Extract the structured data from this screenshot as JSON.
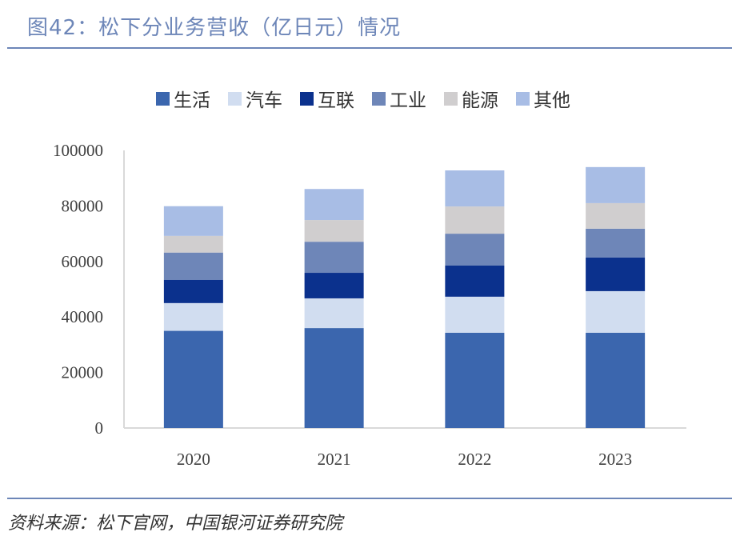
{
  "header": {
    "title": "图42：松下分业务营收（亿日元）情况"
  },
  "footer": {
    "source": "资料来源：松下官网，中国银河证券研究院"
  },
  "chart_data": {
    "type": "bar",
    "stacked": true,
    "title": "图42：松下分业务营收（亿日元）情况",
    "xlabel": "",
    "ylabel": "",
    "categories": [
      "2020",
      "2021",
      "2022",
      "2023"
    ],
    "ylim": [
      0,
      100000
    ],
    "yticks": [
      "0",
      "20000",
      "40000",
      "60000",
      "80000",
      "100000"
    ],
    "legend_position": "top",
    "grid": false,
    "series": [
      {
        "name": "生活",
        "color": "#3b66ae",
        "values": [
          35000,
          36000,
          34300,
          34300
        ]
      },
      {
        "name": "汽车",
        "color": "#d1ddf0",
        "values": [
          10000,
          10700,
          13000,
          15000
        ]
      },
      {
        "name": "互联",
        "color": "#0b318d",
        "values": [
          8400,
          9200,
          11200,
          12100
        ]
      },
      {
        "name": "工业",
        "color": "#6e86b8",
        "values": [
          9800,
          11200,
          11500,
          10400
        ]
      },
      {
        "name": "能源",
        "color": "#d0cecf",
        "values": [
          6000,
          7800,
          9800,
          9200
        ]
      },
      {
        "name": "其他",
        "color": "#a8bde5",
        "values": [
          10700,
          11200,
          13000,
          13000
        ]
      }
    ]
  }
}
